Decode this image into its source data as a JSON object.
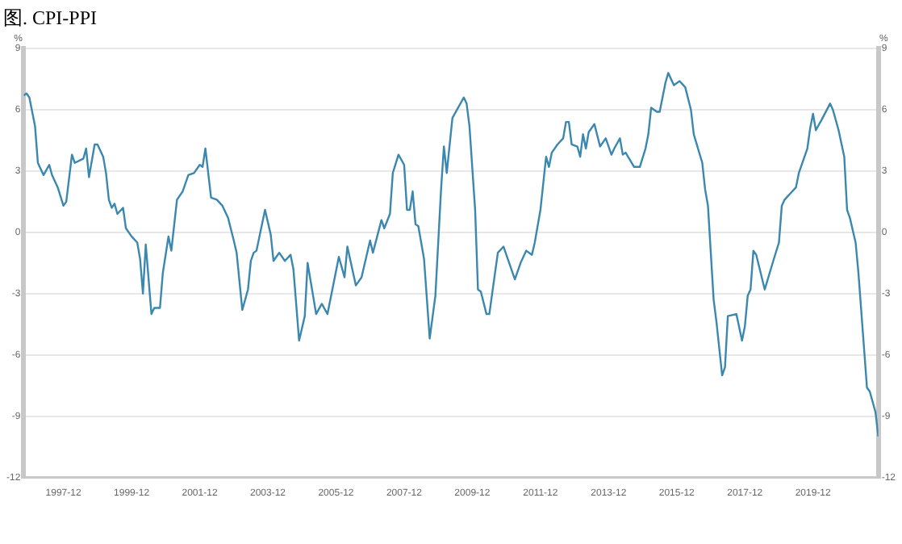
{
  "chart_data": {
    "type": "line",
    "title": "图. CPI-PPI",
    "ylabel": "%",
    "y2label": "%",
    "x": [
      "1996-10",
      "1996-11",
      "1996-12",
      "1997-02",
      "1997-03",
      "1997-05",
      "1997-07",
      "1997-08",
      "1997-10",
      "1997-12",
      "1998-01",
      "1998-03",
      "1998-04",
      "1998-07",
      "1998-08",
      "1998-09",
      "1998-11",
      "1998-12",
      "1999-02",
      "1999-03",
      "1999-04",
      "1999-05",
      "1999-06",
      "1999-07",
      "1999-09",
      "1999-10",
      "1999-12",
      "2000-02",
      "2000-03",
      "2000-04",
      "2000-05",
      "2000-07",
      "2000-08",
      "2000-10",
      "2000-11",
      "2001-01",
      "2001-02",
      "2001-04",
      "2001-06",
      "2001-08",
      "2001-10",
      "2001-12",
      "2002-01",
      "2002-02",
      "2002-04",
      "2002-06",
      "2002-08",
      "2002-10",
      "2002-12",
      "2003-01",
      "2003-03",
      "2003-05",
      "2003-06",
      "2003-07",
      "2003-08",
      "2003-11",
      "2004-01",
      "2004-02",
      "2004-04",
      "2004-06",
      "2004-08",
      "2004-09",
      "2004-11",
      "2005-01",
      "2005-02",
      "2005-05",
      "2005-07",
      "2005-09",
      "2005-12",
      "2006-01",
      "2006-03",
      "2006-04",
      "2006-07",
      "2006-09",
      "2006-12",
      "2007-01",
      "2007-04",
      "2007-05",
      "2007-07",
      "2007-08",
      "2007-10",
      "2007-12",
      "2008-01",
      "2008-02",
      "2008-03",
      "2008-04",
      "2008-05",
      "2008-07",
      "2008-09",
      "2008-11",
      "2008-12",
      "2009-01",
      "2009-02",
      "2009-03",
      "2009-05",
      "2009-09",
      "2009-10",
      "2009-11",
      "2010-01",
      "2010-02",
      "2010-03",
      "2010-05",
      "2010-06",
      "2010-08",
      "2010-09",
      "2010-11",
      "2011-01",
      "2011-03",
      "2011-05",
      "2011-07",
      "2011-09",
      "2011-10",
      "2011-12",
      "2012-02",
      "2012-03",
      "2012-04",
      "2012-06",
      "2012-08",
      "2012-09",
      "2012-10",
      "2012-11",
      "2013-01",
      "2013-02",
      "2013-03",
      "2013-04",
      "2013-05",
      "2013-07",
      "2013-09",
      "2013-11",
      "2014-01",
      "2014-02",
      "2014-04",
      "2014-05",
      "2014-06",
      "2014-09",
      "2014-11",
      "2015-01",
      "2015-02",
      "2015-03",
      "2015-05",
      "2015-06",
      "2015-08",
      "2015-09",
      "2015-11",
      "2016-01",
      "2016-03",
      "2016-05",
      "2016-06",
      "2016-09",
      "2016-10",
      "2016-11",
      "2017-01",
      "2017-02",
      "2017-04",
      "2017-05",
      "2017-06",
      "2017-09",
      "2017-11",
      "2017-12",
      "2018-01",
      "2018-02",
      "2018-03",
      "2018-04",
      "2018-07",
      "2018-10",
      "2018-12",
      "2019-01",
      "2019-02",
      "2019-04",
      "2019-06",
      "2019-07",
      "2019-10",
      "2019-11",
      "2019-12",
      "2020-01",
      "2020-03",
      "2020-06",
      "2020-07",
      "2020-09",
      "2020-11",
      "2020-12",
      "2021-01",
      "2021-03",
      "2021-04",
      "2021-07",
      "2021-08",
      "2021-10",
      "2021-11"
    ],
    "series": [
      {
        "color": "#3a87b0",
        "values": [
          6.7,
          6.8,
          6.6,
          5.2,
          3.4,
          2.8,
          3.3,
          2.8,
          2.2,
          1.3,
          1.5,
          3.8,
          3.4,
          3.6,
          4.1,
          2.7,
          4.3,
          4.3,
          3.7,
          2.9,
          1.6,
          1.2,
          1.4,
          0.9,
          1.2,
          0.2,
          -0.2,
          -0.5,
          -1.3,
          -3.0,
          -0.6,
          -4.0,
          -3.7,
          -3.7,
          -2.0,
          -0.2,
          -0.9,
          1.6,
          2.0,
          2.8,
          2.9,
          3.3,
          3.2,
          4.1,
          1.7,
          1.6,
          1.3,
          0.7,
          -0.4,
          -1.0,
          -3.8,
          -2.8,
          -1.4,
          -1.0,
          -0.9,
          1.1,
          -0.1,
          -1.4,
          -1.0,
          -1.4,
          -1.1,
          -1.8,
          -5.3,
          -4.1,
          -1.5,
          -4.0,
          -3.5,
          -4.0,
          -1.9,
          -1.2,
          -2.2,
          -0.7,
          -2.6,
          -2.2,
          -0.4,
          -1.0,
          0.6,
          0.2,
          0.9,
          2.9,
          3.8,
          3.3,
          1.1,
          1.1,
          2.0,
          0.4,
          0.3,
          -1.3,
          -5.2,
          -3.1,
          -0.5,
          2.1,
          4.2,
          2.9,
          5.6,
          6.6,
          6.3,
          5.2,
          1.1,
          -2.8,
          -2.9,
          -4.0,
          -4.0,
          -2.0,
          -1.0,
          -0.7,
          -1.5,
          -2.3,
          -1.5,
          -0.9,
          -1.1,
          -0.5,
          1.1,
          3.7,
          3.2,
          3.9,
          4.3,
          4.6,
          5.4,
          5.4,
          4.3,
          4.2,
          3.7,
          4.8,
          4.1,
          4.9,
          5.3,
          4.2,
          4.6,
          3.8,
          4.1,
          4.6,
          3.8,
          3.9,
          3.2,
          3.2,
          4.1,
          4.8,
          6.1,
          5.9,
          5.9,
          7.3,
          7.8,
          7.2,
          7.4,
          7.1,
          6.0,
          4.8,
          3.4,
          2.1,
          1.3,
          -3.3,
          -4.4,
          -7.0,
          -6.6,
          -4.1,
          -4.0,
          -5.3,
          -4.6,
          -3.1,
          -2.8,
          -0.9,
          -1.1,
          -2.8,
          -1.4,
          -0.5,
          1.3,
          1.6,
          1.9,
          2.2,
          2.9,
          4.1,
          5.1,
          5.8,
          5.0,
          5.5,
          6.3,
          6.0,
          5.0,
          3.7,
          1.1,
          0.7,
          -0.5,
          -2.0,
          -7.6,
          -7.8,
          -8.8,
          -10.0
        ]
      }
    ],
    "xlim": [
      "1996-10",
      "2021-11"
    ],
    "xticks": [
      "1997-12",
      "1999-12",
      "2001-12",
      "2003-12",
      "2005-12",
      "2007-12",
      "2009-12",
      "2011-12",
      "2013-12",
      "2015-12",
      "2017-12",
      "2019-12"
    ],
    "ylim": [
      -12,
      9
    ],
    "yticks": [
      -12,
      -9,
      -6,
      -3,
      0,
      3,
      6,
      9
    ],
    "y2lim": [
      -12,
      9
    ],
    "y2ticks": [
      -12,
      -9,
      -6,
      -3,
      0,
      3,
      6,
      9
    ],
    "grid": "y",
    "legend": false,
    "marker": "none",
    "line_style": "solid"
  }
}
